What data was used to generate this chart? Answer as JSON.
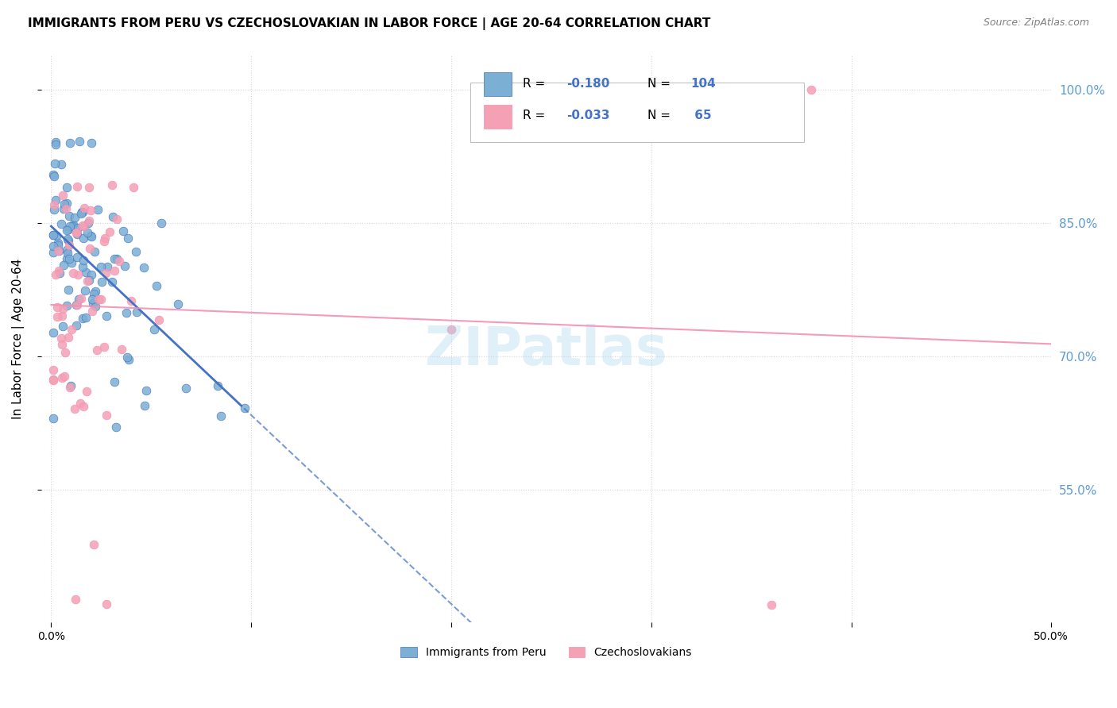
{
  "title": "IMMIGRANTS FROM PERU VS CZECHOSLOVAKIAN IN LABOR FORCE | AGE 20-64 CORRELATION CHART",
  "source": "Source: ZipAtlas.com",
  "ylabel": "In Labor Force | Age 20-64",
  "ytick_labels": [
    "55.0%",
    "70.0%",
    "85.0%",
    "100.0%"
  ],
  "ytick_values": [
    0.55,
    0.7,
    0.85,
    1.0
  ],
  "xlim": [
    -0.005,
    0.5
  ],
  "ylim": [
    0.4,
    1.04
  ],
  "color_peru": "#7bafd4",
  "color_czech": "#f4a0b5",
  "color_peru_edge": "#4472c4",
  "color_czech_edge": "#f48fb1",
  "color_peru_trendline": "#4472c4",
  "color_czech_trendline": "#f48fb1",
  "legend_r1_val": "-0.180",
  "legend_n1_val": "104",
  "legend_r2_val": "-0.033",
  "legend_n2_val": "65",
  "watermark_text": "ZIPatlas",
  "bottom_legend_peru": "Immigrants from Peru",
  "bottom_legend_czech": "Czechoslovakians"
}
